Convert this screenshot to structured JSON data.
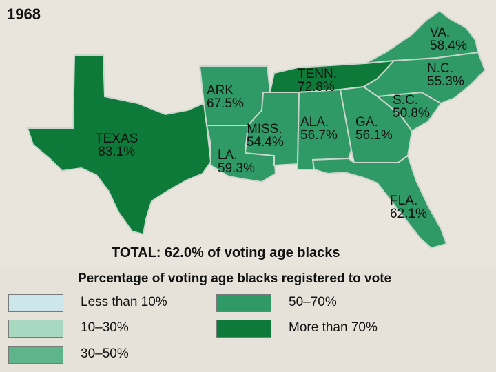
{
  "map": {
    "year": "1968",
    "total": "TOTAL: 62.0% of voting age blacks",
    "colors": {
      "background": "#e9e5dc",
      "border": "#c9d6cc",
      "more_than_70": "#0e7a3a",
      "50_70": "#2f9a66"
    },
    "states": [
      {
        "abbr": "VA.",
        "value": "58.4%",
        "category": "50–70%"
      },
      {
        "abbr": "N.C.",
        "value": "55.3%",
        "category": "50–70%"
      },
      {
        "abbr": "TENN.",
        "value": "72.8%",
        "category": "More than 70%"
      },
      {
        "abbr": "ARK",
        "value": "67.5%",
        "category": "50–70%"
      },
      {
        "abbr": "S.C.",
        "value": "50.8%",
        "category": "50–70%"
      },
      {
        "abbr": "TEXAS",
        "value": "83.1%",
        "category": "More than 70%"
      },
      {
        "abbr": "MISS.",
        "value": "54.4%",
        "category": "50–70%"
      },
      {
        "abbr": "ALA.",
        "value": "56.7%",
        "category": "50–70%"
      },
      {
        "abbr": "GA.",
        "value": "56.1%",
        "category": "50–70%"
      },
      {
        "abbr": "LA.",
        "value": "59.3%",
        "category": "50–70%"
      },
      {
        "abbr": "FLA.",
        "value": "62.1%",
        "category": "50–70%"
      }
    ]
  },
  "legend": {
    "title": "Percentage of voting age blacks registered to vote",
    "items": [
      {
        "label": "Less than 10%",
        "color": "#cde6ec"
      },
      {
        "label": "50–70%",
        "color": "#2f9a66"
      },
      {
        "label": "10–30%",
        "color": "#a9d8c0"
      },
      {
        "label": "More than 70%",
        "color": "#0e7a3a"
      },
      {
        "label": "30–50%",
        "color": "#5fb58a"
      }
    ]
  }
}
